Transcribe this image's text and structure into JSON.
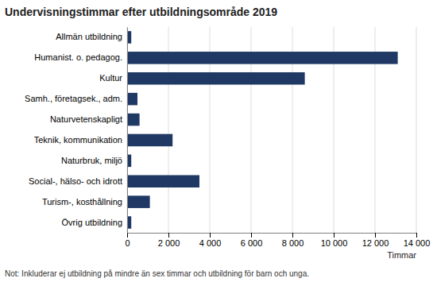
{
  "chart_data": {
    "type": "bar",
    "orientation": "horizontal",
    "title": "Undervisningstimmar efter utbildningsområde 2019",
    "categories": [
      "Övrig utbildning",
      "Turism-, kosthållning",
      "Social-, hälso- och idrott",
      "Naturbruk, miljö",
      "Teknik, kommunikation",
      "Naturvetenskapligt",
      "Samh., företagsek., adm.",
      "Kultur",
      "Humanist. o. pedagog.",
      "Allmän utbildning"
    ],
    "values": [
      200,
      1100,
      3500,
      200,
      2200,
      600,
      500,
      8600,
      13100,
      200
    ],
    "color": "#1f3864",
    "xlabel": "Timmar",
    "xlim": [
      0,
      14000
    ],
    "xticks": [
      0,
      {
        "value": 2000,
        "label": "2 000"
      },
      {
        "value": 4000,
        "label": "4 000"
      },
      {
        "value": 6000,
        "label": "6 000"
      },
      {
        "value": 8000,
        "label": "8 000"
      },
      {
        "value": 10000,
        "label": "10 000"
      },
      {
        "value": 12000,
        "label": "12 000"
      },
      {
        "value": 14000,
        "label": "14 000"
      }
    ],
    "note": "Not: Inkluderar ej utbildning på mindre än sex timmar och utbildning för barn och unga.",
    "grid": true
  }
}
